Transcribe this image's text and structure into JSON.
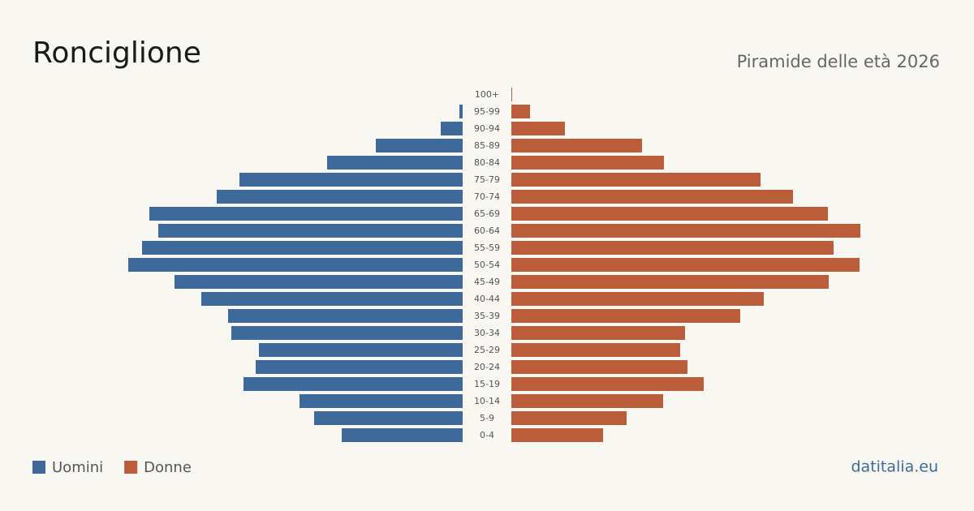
{
  "chart_data": {
    "type": "pyramid",
    "title": "Ronciglione",
    "subtitle": "Piramide delle età 2026",
    "source": "datitalia.eu",
    "categories": [
      "100+",
      "95-99",
      "90-94",
      "85-89",
      "80-84",
      "75-79",
      "70-74",
      "65-69",
      "60-64",
      "55-59",
      "50-54",
      "45-49",
      "40-44",
      "35-39",
      "30-34",
      "25-29",
      "20-24",
      "15-19",
      "10-14",
      "5-9",
      "0-4"
    ],
    "series": [
      {
        "name": "Uomini",
        "color": "#3d6a9a",
        "side": "left",
        "values": [
          0,
          4,
          27,
          107,
          167,
          275,
          303,
          386,
          375,
          395,
          412,
          355,
          322,
          289,
          285,
          251,
          255,
          270,
          201,
          183,
          149
        ]
      },
      {
        "name": "Donne",
        "color": "#bb5c3b",
        "side": "right",
        "values": [
          1,
          23,
          66,
          161,
          188,
          307,
          347,
          390,
          430,
          397,
          429,
          391,
          311,
          282,
          214,
          208,
          217,
          237,
          187,
          142,
          113
        ]
      }
    ]
  }
}
